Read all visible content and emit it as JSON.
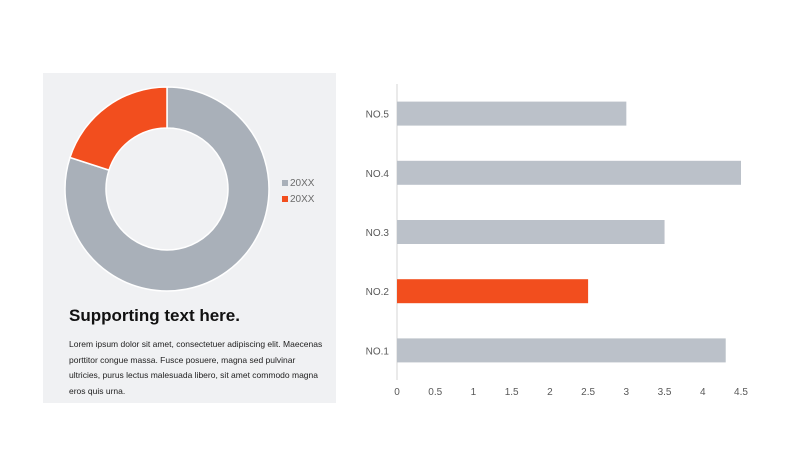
{
  "chart_data": [
    {
      "type": "pie",
      "variant": "donut",
      "series": [
        {
          "name": "20XX",
          "value": 80,
          "color": "#a9b0b9"
        },
        {
          "name": "20XX",
          "value": 20,
          "color": "#f24e1e"
        }
      ],
      "legend_position": "right"
    },
    {
      "type": "bar",
      "orientation": "horizontal",
      "categories": [
        "NO.1",
        "NO.2",
        "NO.3",
        "NO.4",
        "NO.5"
      ],
      "values": [
        4.3,
        2.5,
        3.5,
        4.5,
        3.0
      ],
      "colors": [
        "#bbc1c9",
        "#f24e1e",
        "#bbc1c9",
        "#bbc1c9",
        "#bbc1c9"
      ],
      "xlim": [
        0,
        4.5
      ],
      "xticks": [
        "0",
        "0.5",
        "1",
        "1.5",
        "2",
        "2.5",
        "3",
        "3.5",
        "4",
        "4.5"
      ],
      "grid": false
    }
  ],
  "panel": {
    "title": "Supporting text here.",
    "body": "Lorem ipsum dolor sit amet, consectetuer adipiscing elit. Maecenas porttitor congue massa. Fusce posuere, magna sed pulvinar ultricies, purus lectus malesuada libero, sit amet commodo magna eros quis urna."
  }
}
